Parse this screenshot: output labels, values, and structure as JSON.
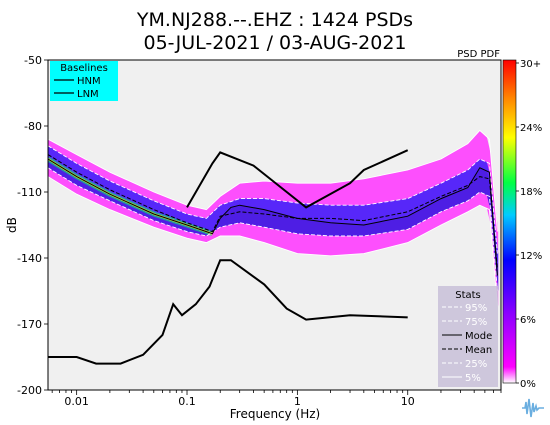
{
  "chart_data": {
    "type": "heatmap",
    "title_line1": "YM.NJ288.--.EHZ : 1424 PSDs",
    "title_line2": "05-JUL-2021 / 03-AUG-2021",
    "xlabel": "Frequency (Hz)",
    "ylabel": "dB",
    "x_scale": "log",
    "xlim": [
      0.0055,
      70
    ],
    "ylim": [
      -200,
      -50
    ],
    "x_ticks": [
      {
        "value": 0.01,
        "label": "0.01"
      },
      {
        "value": 0.1,
        "label": "0.1"
      },
      {
        "value": 1,
        "label": "1"
      },
      {
        "value": 10,
        "label": "10"
      }
    ],
    "y_ticks": [
      {
        "value": -50,
        "label": "-50"
      },
      {
        "value": -80,
        "label": "-80"
      },
      {
        "value": -110,
        "label": "-110"
      },
      {
        "value": -140,
        "label": "-140"
      },
      {
        "value": -170,
        "label": "-170"
      },
      {
        "value": -200,
        "label": "-200"
      }
    ],
    "colorbar": {
      "title": "PSD PDF",
      "ticks": [
        "30+",
        "24%",
        "18%",
        "12%",
        "6%",
        "0%"
      ]
    },
    "baselines_legend": {
      "title": "Baselines",
      "entries": [
        "HNM",
        "LNM"
      ],
      "bg_color": "#00ffff"
    },
    "stats_legend": {
      "title": "Stats",
      "entries": [
        "95%",
        "75%",
        "Mode",
        "Mean",
        "25%",
        "5%"
      ],
      "bg_color": "#c8bfd8"
    },
    "hnm": [
      [
        0.1,
        -117
      ],
      [
        0.17,
        -97
      ],
      [
        0.2,
        -92
      ],
      [
        0.4,
        -98
      ],
      [
        0.8,
        -110
      ],
      [
        1.2,
        -117
      ],
      [
        3,
        -106
      ],
      [
        4,
        -100
      ],
      [
        10,
        -91
      ]
    ],
    "lnm": [
      [
        0.0055,
        -185
      ],
      [
        0.01,
        -185
      ],
      [
        0.015,
        -188
      ],
      [
        0.025,
        -188
      ],
      [
        0.04,
        -184
      ],
      [
        0.06,
        -175
      ],
      [
        0.075,
        -161
      ],
      [
        0.09,
        -166
      ],
      [
        0.12,
        -161
      ],
      [
        0.16,
        -153
      ],
      [
        0.2,
        -141
      ],
      [
        0.25,
        -141
      ],
      [
        0.5,
        -152
      ],
      [
        0.8,
        -163
      ],
      [
        1.2,
        -168
      ],
      [
        3,
        -166
      ],
      [
        10,
        -167
      ]
    ],
    "mode": [
      [
        0.0055,
        -95
      ],
      [
        0.01,
        -103
      ],
      [
        0.02,
        -111
      ],
      [
        0.05,
        -120
      ],
      [
        0.1,
        -125
      ],
      [
        0.15,
        -128
      ],
      [
        0.17,
        -129
      ],
      [
        0.2,
        -122
      ],
      [
        0.25,
        -117
      ],
      [
        0.3,
        -116
      ],
      [
        0.5,
        -118
      ],
      [
        1,
        -122
      ],
      [
        2,
        -124
      ],
      [
        4,
        -125
      ],
      [
        10,
        -121
      ],
      [
        20,
        -113
      ],
      [
        35,
        -108
      ],
      [
        45,
        -99
      ],
      [
        55,
        -101
      ],
      [
        65,
        -148
      ]
    ],
    "mean": [
      [
        0.0055,
        -93
      ],
      [
        0.01,
        -101
      ],
      [
        0.02,
        -109
      ],
      [
        0.05,
        -118
      ],
      [
        0.1,
        -124
      ],
      [
        0.15,
        -127
      ],
      [
        0.17,
        -128
      ],
      [
        0.2,
        -121
      ],
      [
        0.3,
        -119
      ],
      [
        0.5,
        -120
      ],
      [
        1,
        -122
      ],
      [
        2,
        -122
      ],
      [
        4,
        -123
      ],
      [
        10,
        -119
      ],
      [
        20,
        -112
      ],
      [
        35,
        -107
      ],
      [
        45,
        -103
      ],
      [
        55,
        -104
      ],
      [
        65,
        -145
      ]
    ],
    "p95": [
      [
        0.0055,
        -86
      ],
      [
        0.01,
        -93
      ],
      [
        0.02,
        -101
      ],
      [
        0.05,
        -110
      ],
      [
        0.1,
        -116
      ],
      [
        0.15,
        -118
      ],
      [
        0.2,
        -112
      ],
      [
        0.3,
        -106
      ],
      [
        0.5,
        -105
      ],
      [
        1,
        -106
      ],
      [
        2,
        -106
      ],
      [
        4,
        -104
      ],
      [
        10,
        -100
      ],
      [
        20,
        -95
      ],
      [
        35,
        -88
      ],
      [
        45,
        -82
      ],
      [
        55,
        -86
      ],
      [
        65,
        -128
      ]
    ],
    "p75": [
      [
        0.0055,
        -89
      ],
      [
        0.01,
        -97
      ],
      [
        0.02,
        -105
      ],
      [
        0.05,
        -114
      ],
      [
        0.1,
        -120
      ],
      [
        0.15,
        -122
      ],
      [
        0.2,
        -116
      ],
      [
        0.3,
        -113
      ],
      [
        0.5,
        -113
      ],
      [
        1,
        -115
      ],
      [
        2,
        -116
      ],
      [
        4,
        -116
      ],
      [
        10,
        -113
      ],
      [
        20,
        -106
      ],
      [
        35,
        -100
      ],
      [
        45,
        -95
      ],
      [
        55,
        -97
      ],
      [
        65,
        -138
      ]
    ],
    "p25": [
      [
        0.0055,
        -99
      ],
      [
        0.01,
        -107
      ],
      [
        0.02,
        -114
      ],
      [
        0.05,
        -123
      ],
      [
        0.1,
        -128
      ],
      [
        0.15,
        -130
      ],
      [
        0.2,
        -126
      ],
      [
        0.3,
        -124
      ],
      [
        0.5,
        -126
      ],
      [
        1,
        -129
      ],
      [
        2,
        -130
      ],
      [
        4,
        -130
      ],
      [
        10,
        -127
      ],
      [
        20,
        -119
      ],
      [
        35,
        -114
      ],
      [
        45,
        -110
      ],
      [
        55,
        -112
      ],
      [
        65,
        -155
      ]
    ],
    "p5": [
      [
        0.0055,
        -103
      ],
      [
        0.01,
        -111
      ],
      [
        0.02,
        -118
      ],
      [
        0.05,
        -126
      ],
      [
        0.1,
        -131
      ],
      [
        0.15,
        -133
      ],
      [
        0.2,
        -130
      ],
      [
        0.3,
        -130
      ],
      [
        0.5,
        -133
      ],
      [
        1,
        -138
      ],
      [
        2,
        -139
      ],
      [
        4,
        -138
      ],
      [
        10,
        -133
      ],
      [
        20,
        -125
      ],
      [
        35,
        -119
      ],
      [
        45,
        -116
      ],
      [
        55,
        -118
      ],
      [
        65,
        -162
      ]
    ]
  }
}
